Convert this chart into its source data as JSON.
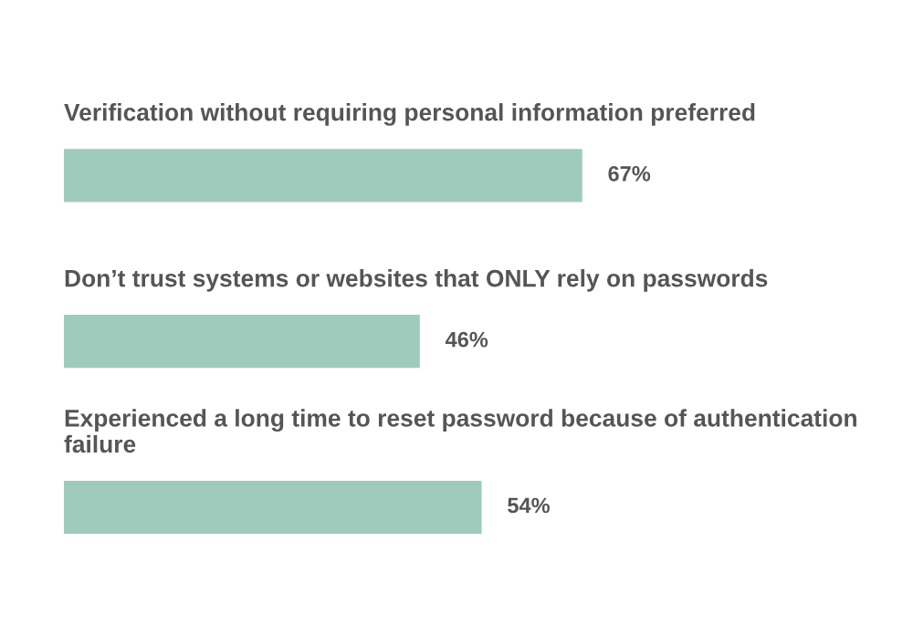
{
  "chart_data": {
    "type": "bar",
    "orientation": "horizontal",
    "categories": [
      "Verification without requiring personal information preferred",
      "Don’t trust systems or websites that ONLY rely on passwords",
      "Experienced a long time to reset password because of authentication failure"
    ],
    "values": [
      67,
      46,
      54
    ],
    "color": "#9fcbbd",
    "value_labels": [
      "67%",
      "46%",
      "54%"
    ]
  }
}
